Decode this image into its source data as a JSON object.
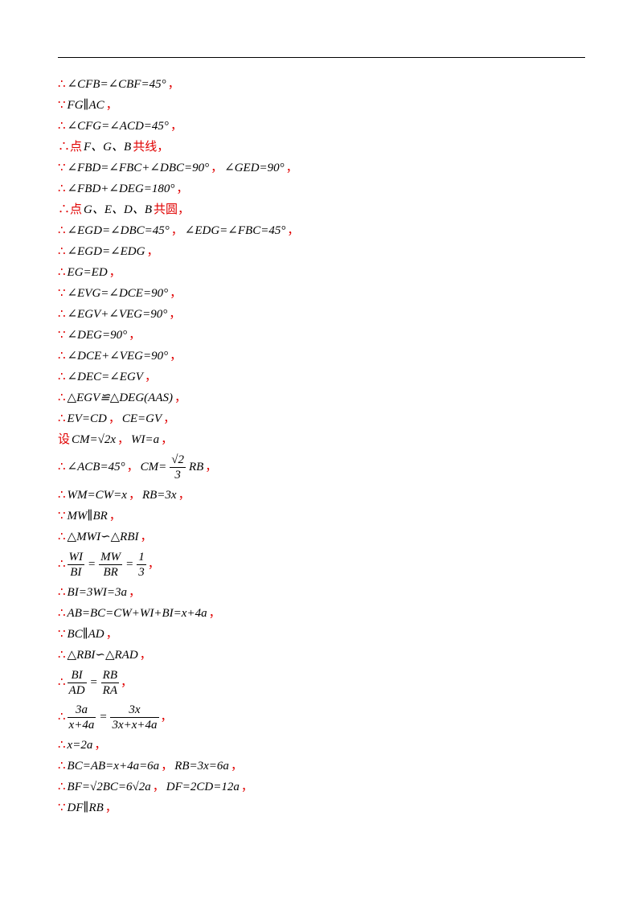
{
  "lines": [
    [
      {
        "r": "∴"
      },
      {
        "m": "∠CFB=∠CBF=45°"
      },
      {
        "r": "，"
      }
    ],
    [
      {
        "r": "∵"
      },
      {
        "m": "FG∥AC"
      },
      {
        "r": "，"
      }
    ],
    [
      {
        "r": "∴"
      },
      {
        "m": "∠CFG=∠ACD=45°"
      },
      {
        "r": "，"
      }
    ],
    [
      {
        "r": "∴点"
      },
      {
        "m": "F、G、B"
      },
      {
        "r": "共线，"
      }
    ],
    [
      {
        "r": "∵"
      },
      {
        "m": "∠FBD=∠FBC+∠DBC=90°"
      },
      {
        "r": "，"
      },
      {
        "m": "∠GED=90°"
      },
      {
        "r": "，"
      }
    ],
    [
      {
        "r": "∴"
      },
      {
        "m": "∠FBD+∠DEG=180°"
      },
      {
        "r": "，"
      }
    ],
    [
      {
        "r": "∴点"
      },
      {
        "m": "G、E、D、B"
      },
      {
        "r": "共圆，"
      }
    ],
    [
      {
        "r": "∴"
      },
      {
        "m": "∠EGD=∠DBC=45°"
      },
      {
        "r": "，"
      },
      {
        "m": "∠EDG=∠FBC=45°"
      },
      {
        "r": "，"
      }
    ],
    [
      {
        "r": "∴"
      },
      {
        "m": "∠EGD=∠EDG"
      },
      {
        "r": "，"
      }
    ],
    [
      {
        "r": "∴"
      },
      {
        "m": "EG=ED"
      },
      {
        "r": "，"
      }
    ],
    [
      {
        "r": "∵"
      },
      {
        "m": "∠EVG=∠DCE=90°"
      },
      {
        "r": "，"
      }
    ],
    [
      {
        "r": "∴"
      },
      {
        "m": "∠EGV+∠VEG=90°"
      },
      {
        "r": "，"
      }
    ],
    [
      {
        "r": "∵"
      },
      {
        "m": "∠DEG=90°"
      },
      {
        "r": "，"
      }
    ],
    [
      {
        "r": "∴"
      },
      {
        "m": "∠DCE+∠VEG=90°"
      },
      {
        "r": "，"
      }
    ],
    [
      {
        "r": "∴"
      },
      {
        "m": "∠DEC=∠EGV"
      },
      {
        "r": "，"
      }
    ],
    [
      {
        "r": "∴"
      },
      {
        "m": "△EGV≌△DEG(AAS)"
      },
      {
        "r": "，"
      }
    ],
    [
      {
        "r": "∴"
      },
      {
        "m": "EV=CD"
      },
      {
        "r": "，"
      },
      {
        "m": "CE=GV"
      },
      {
        "r": "，"
      }
    ],
    [
      {
        "r": "设"
      },
      {
        "m": "CM=√2x"
      },
      {
        "r": "，"
      },
      {
        "m": "WI=a"
      },
      {
        "r": "，"
      }
    ],
    [
      {
        "r": "∴"
      },
      {
        "m": "∠ACB=45°"
      },
      {
        "r": "，"
      },
      {
        "m": "CM="
      },
      {
        "f": [
          "√2",
          "3"
        ]
      },
      {
        "m": "RB"
      },
      {
        "r": "，"
      }
    ],
    [
      {
        "r": "∴"
      },
      {
        "m": "WM=CW=x"
      },
      {
        "r": "，"
      },
      {
        "m": "RB=3x"
      },
      {
        "r": "，"
      }
    ],
    [
      {
        "r": "∵"
      },
      {
        "m": "MW∥BR"
      },
      {
        "r": "，"
      }
    ],
    [
      {
        "r": "∴"
      },
      {
        "m": "△MWI∽△RBI"
      },
      {
        "r": "，"
      }
    ],
    [
      {
        "r": "∴"
      },
      {
        "f": [
          "WI",
          "BI"
        ]
      },
      {
        "m": "="
      },
      {
        "f": [
          "MW",
          "BR"
        ]
      },
      {
        "m": "="
      },
      {
        "f": [
          "1",
          "3"
        ]
      },
      {
        "r": "，"
      }
    ],
    [
      {
        "r": "∴"
      },
      {
        "m": "BI=3WI=3a"
      },
      {
        "r": "，"
      }
    ],
    [
      {
        "r": "∴"
      },
      {
        "m": "AB=BC=CW+WI+BI=x+4a"
      },
      {
        "r": "，"
      }
    ],
    [
      {
        "r": "∵"
      },
      {
        "m": "BC∥AD"
      },
      {
        "r": "，"
      }
    ],
    [
      {
        "r": "∴"
      },
      {
        "m": "△RBI∽△RAD"
      },
      {
        "r": "，"
      }
    ],
    [
      {
        "r": "∴"
      },
      {
        "f": [
          "BI",
          "AD"
        ]
      },
      {
        "m": "="
      },
      {
        "f": [
          "RB",
          "RA"
        ]
      },
      {
        "r": "，"
      }
    ],
    [
      {
        "r": "∴"
      },
      {
        "f": [
          "3a",
          "x+4a"
        ]
      },
      {
        "m": "="
      },
      {
        "f": [
          "3x",
          "3x+x+4a"
        ]
      },
      {
        "r": "，"
      }
    ],
    [
      {
        "r": "∴"
      },
      {
        "m": "x=2a"
      },
      {
        "r": "，"
      }
    ],
    [
      {
        "r": "∴"
      },
      {
        "m": "BC=AB=x+4a=6a"
      },
      {
        "r": "，"
      },
      {
        "m": "RB=3x=6a"
      },
      {
        "r": "，"
      }
    ],
    [
      {
        "r": "∴"
      },
      {
        "m": "BF=√2BC=6√2a"
      },
      {
        "r": "，"
      },
      {
        "m": "DF=2CD=12a"
      },
      {
        "r": "，"
      }
    ],
    [
      {
        "r": "∵"
      },
      {
        "m": "DF∥RB"
      },
      {
        "r": "，"
      }
    ]
  ]
}
